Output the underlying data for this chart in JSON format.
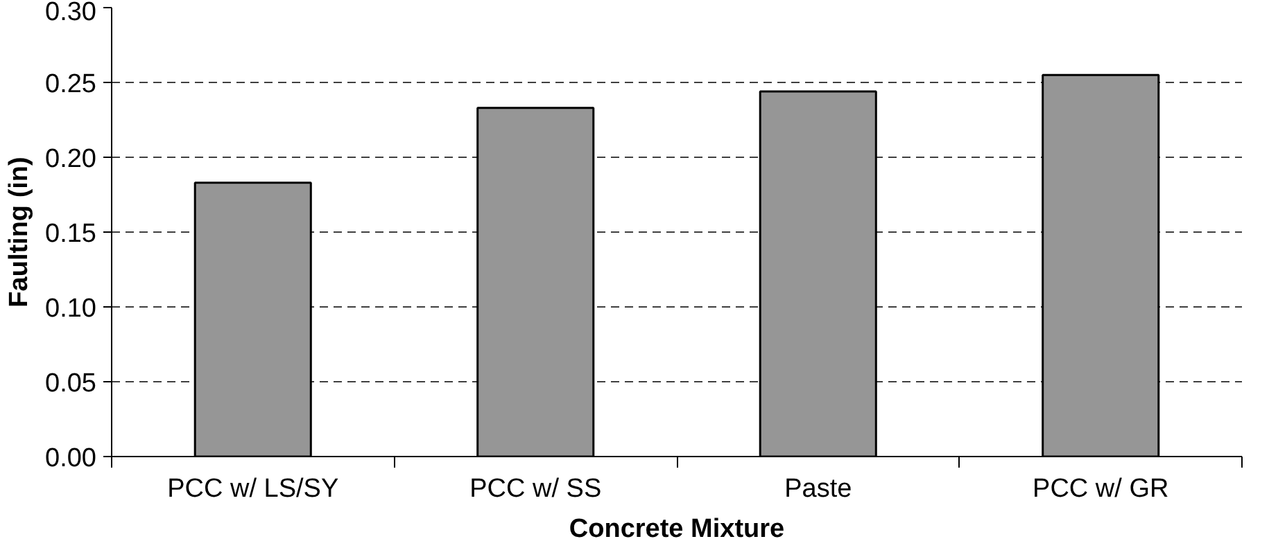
{
  "chart_data": {
    "type": "bar",
    "xlabel": "Concrete Mixture",
    "ylabel": "Faulting (in)",
    "categories": [
      "PCC w/ LS/SY",
      "PCC w/ SS",
      "Paste",
      "PCC w/ GR"
    ],
    "values": [
      0.183,
      0.233,
      0.244,
      0.255
    ],
    "color": "#969696",
    "ylim": [
      0,
      0.3
    ],
    "yticks": [
      {
        "value": 0,
        "label": "0.00"
      },
      {
        "value": 0.05,
        "label": "0.05"
      },
      {
        "value": 0.1,
        "label": "0.10"
      },
      {
        "value": 0.15,
        "label": "0.15"
      },
      {
        "value": 0.2,
        "label": "0.20"
      },
      {
        "value": 0.25,
        "label": "0.25"
      },
      {
        "value": 0.3,
        "label": "0.30"
      }
    ],
    "grid": "y"
  }
}
